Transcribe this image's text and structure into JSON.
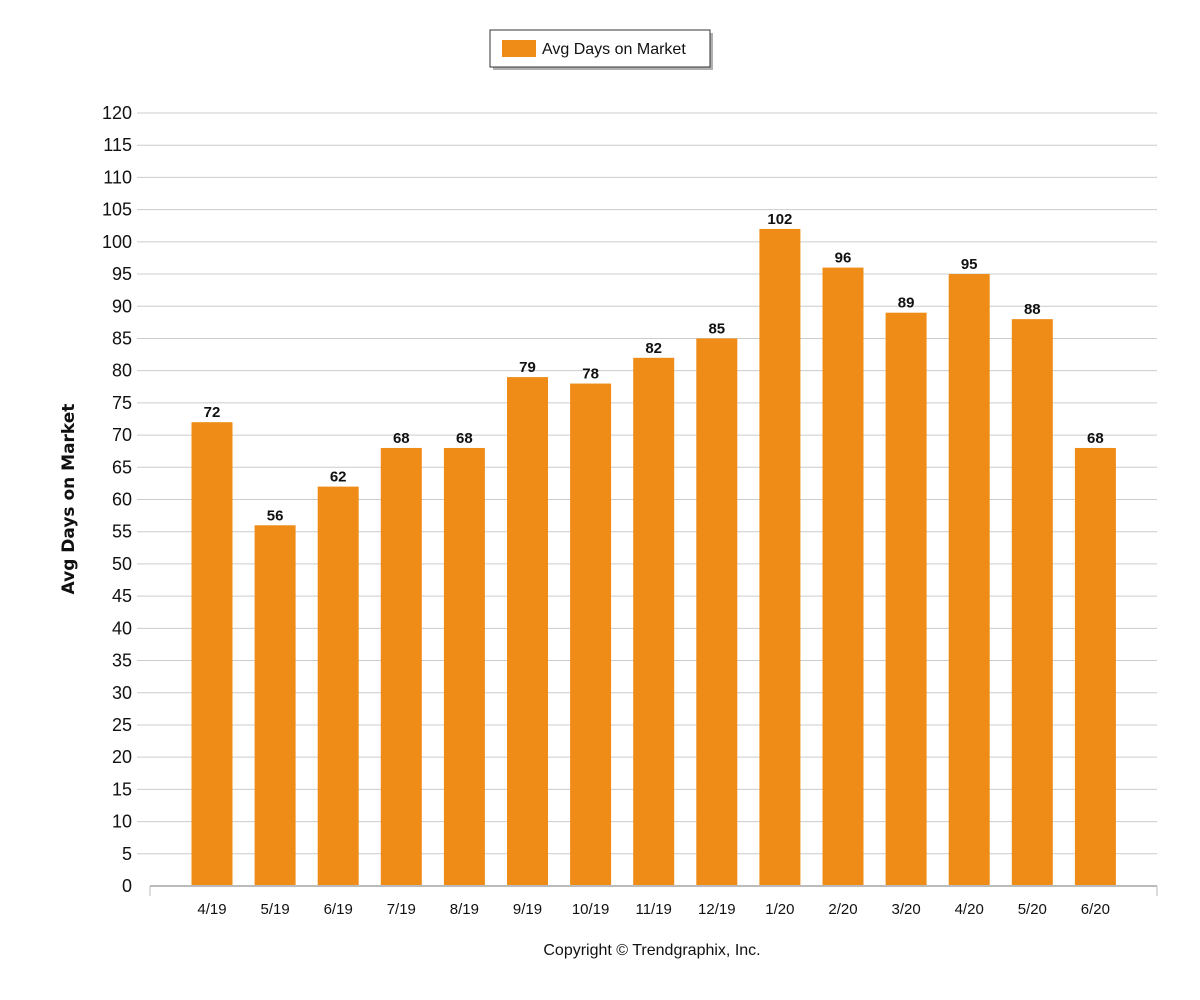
{
  "chart_data": {
    "type": "bar",
    "categories": [
      "4/19",
      "5/19",
      "6/19",
      "7/19",
      "8/19",
      "9/19",
      "10/19",
      "11/19",
      "12/19",
      "1/20",
      "2/20",
      "3/20",
      "4/20",
      "5/20",
      "6/20"
    ],
    "series": [
      {
        "name": "Avg Days on Market",
        "values": [
          72,
          56,
          62,
          68,
          68,
          79,
          78,
          82,
          85,
          102,
          96,
          89,
          95,
          88,
          68
        ],
        "color": "#EF8C17"
      }
    ],
    "ylabel": "Avg Days on Market",
    "xlabel": "",
    "ylim": [
      0,
      120
    ],
    "ytick_step": 5,
    "grid": true,
    "legend_position": "top-center",
    "data_labels": true
  },
  "footer": {
    "copyright": "Copyright © Trendgraphix, Inc."
  }
}
